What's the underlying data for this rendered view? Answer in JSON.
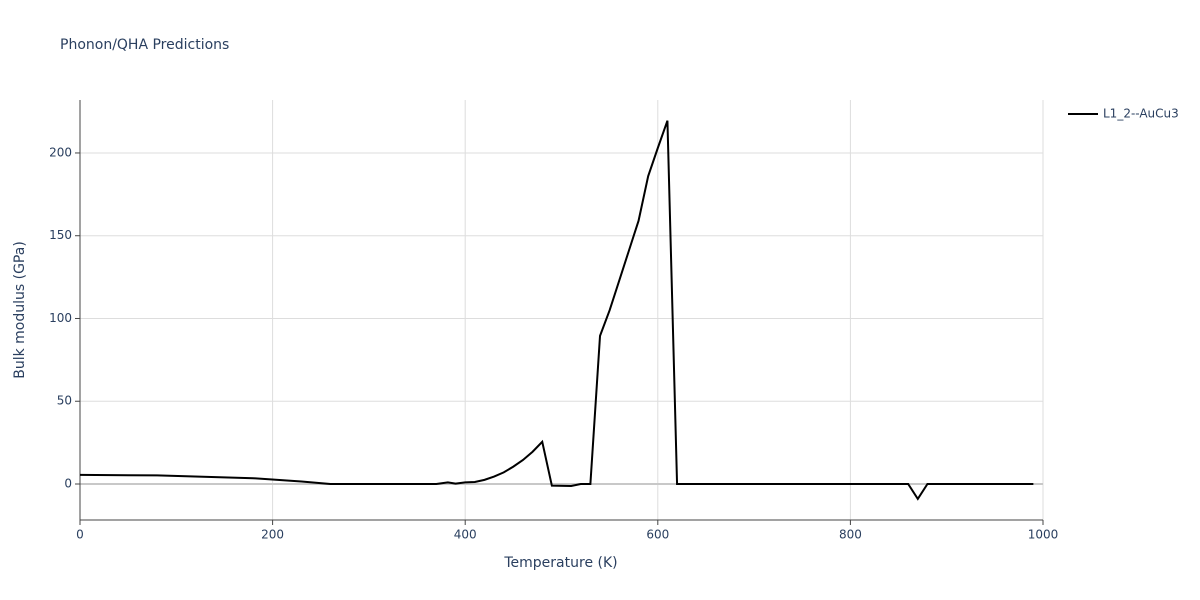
{
  "chart_data": {
    "type": "line",
    "title": "Phonon/QHA Predictions",
    "x_label": "Temperature (K)",
    "y_label": "Bulk modulus (GPa)",
    "x": [
      0,
      80,
      180,
      230,
      260,
      370,
      382,
      390,
      400,
      410,
      420,
      430,
      440,
      450,
      460,
      470,
      480,
      490,
      510,
      520,
      530,
      540,
      550,
      560,
      570,
      580,
      590,
      600,
      610,
      620,
      860,
      870,
      880,
      990
    ],
    "series": [
      {
        "name": "L1_2--AuCu3",
        "color": "#000000",
        "values": [
          5.5,
          5.2,
          3.5,
          1.5,
          0,
          0,
          1,
          0.2,
          1,
          1.2,
          2.5,
          4.5,
          7,
          10.5,
          14.5,
          19.5,
          25.5,
          -1,
          -1.2,
          0,
          0,
          89.5,
          105,
          123,
          141,
          159,
          186,
          203,
          219.5,
          0,
          0,
          -9,
          0,
          0
        ]
      }
    ],
    "xlim": [
      0,
      1000
    ],
    "xticks": [
      0,
      200,
      400,
      600,
      800,
      1000
    ],
    "ylim": [
      -21.75,
      232
    ],
    "yticks": [
      0,
      50,
      100,
      150,
      200
    ],
    "grid": true,
    "legend": "right"
  }
}
